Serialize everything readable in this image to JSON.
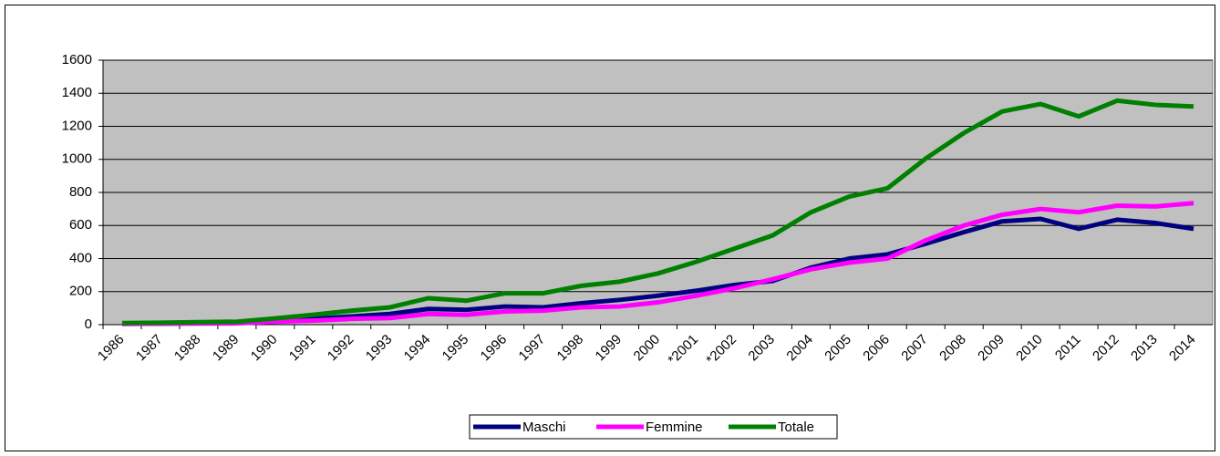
{
  "chart_data": {
    "type": "line",
    "categories": [
      "1986",
      "1987",
      "1988",
      "1989",
      "1990",
      "1991",
      "1992",
      "1993",
      "1994",
      "1995",
      "1996",
      "1997",
      "1998",
      "1999",
      "2000",
      "*2001",
      "*2002",
      "2003",
      "2004",
      "2005",
      "2006",
      "2007",
      "2008",
      "2009",
      "2010",
      "2011",
      "2012",
      "2013",
      "2014"
    ],
    "series": [
      {
        "name": "Maschi",
        "color": "#000080",
        "values": [
          5,
          6,
          8,
          10,
          20,
          35,
          50,
          65,
          95,
          90,
          110,
          105,
          130,
          150,
          175,
          205,
          240,
          265,
          345,
          400,
          425,
          490,
          560,
          625,
          640,
          580,
          635,
          615,
          580
        ]
      },
      {
        "name": "Femmine",
        "color": "#ff00ff",
        "values": [
          5,
          6,
          7,
          8,
          18,
          25,
          35,
          40,
          65,
          60,
          80,
          85,
          105,
          110,
          135,
          175,
          220,
          275,
          335,
          375,
          400,
          510,
          600,
          665,
          700,
          680,
          720,
          715,
          735
        ]
      },
      {
        "name": "Totale",
        "color": "#008000",
        "values": [
          10,
          12,
          15,
          18,
          38,
          60,
          85,
          105,
          160,
          145,
          190,
          190,
          235,
          260,
          310,
          380,
          460,
          540,
          680,
          775,
          825,
          1005,
          1160,
          1290,
          1335,
          1260,
          1355,
          1330,
          1320
        ]
      }
    ],
    "ylim": [
      0,
      1600
    ],
    "yticks": [
      0,
      200,
      400,
      600,
      800,
      1000,
      1200,
      1400,
      1600
    ],
    "grid": true,
    "legend": "bottom"
  }
}
